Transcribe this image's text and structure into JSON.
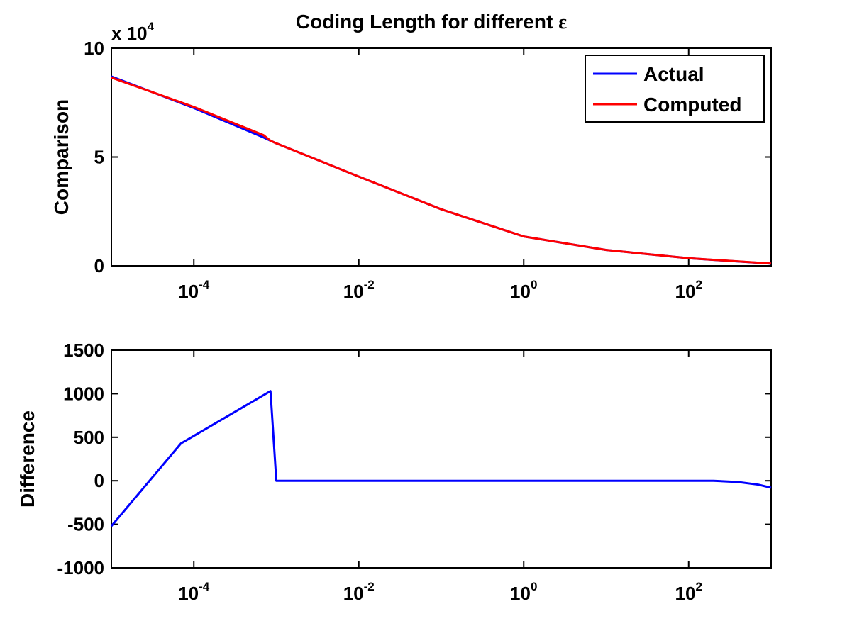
{
  "chart_data": [
    {
      "type": "line",
      "title": "Coding Length for different ",
      "title_symbol": "ε",
      "xscale": "log",
      "xlim": [
        1e-05,
        1000
      ],
      "ylim": [
        0,
        100000
      ],
      "y_multiplier_label": "x 10",
      "y_multiplier_exp": "4",
      "xlabel": "",
      "ylabel": "Comparison",
      "x_tick_values": [
        0.0001,
        0.01,
        1,
        100
      ],
      "x_tick_base": "10",
      "x_tick_exponents": [
        "-4",
        "-2",
        "0",
        "2"
      ],
      "y_tick_values": [
        0,
        50000,
        100000
      ],
      "y_tick_labels": [
        "0",
        "5",
        "10"
      ],
      "legend": "top-right",
      "grid": false,
      "series": [
        {
          "name": "Actual",
          "color": "#0000ff",
          "x": [
            1e-05,
            0.0001,
            0.0007,
            0.00085,
            0.001,
            0.01,
            0.1,
            1,
            10,
            100,
            1000
          ],
          "y": [
            87000,
            72500,
            59000,
            57500,
            56300,
            41000,
            26000,
            13500,
            7300,
            3500,
            1000
          ]
        },
        {
          "name": "Computed",
          "color": "#ff0000",
          "x": [
            1e-05,
            0.0001,
            0.0007,
            0.00085,
            0.001,
            0.01,
            0.1,
            1,
            10,
            100,
            1000
          ],
          "y": [
            86500,
            73000,
            60030,
            57500,
            56300,
            41000,
            26000,
            13500,
            7300,
            3500,
            1070
          ]
        }
      ]
    },
    {
      "type": "line",
      "xscale": "log",
      "xlim": [
        1e-05,
        1000
      ],
      "ylim": [
        -1000,
        1500
      ],
      "xlabel": "",
      "ylabel": "Difference",
      "x_tick_values": [
        0.0001,
        0.01,
        1,
        100
      ],
      "x_tick_base": "10",
      "x_tick_exponents": [
        "-4",
        "-2",
        "0",
        "2"
      ],
      "y_tick_values": [
        -1000,
        -500,
        0,
        500,
        1000,
        1500
      ],
      "y_tick_labels": [
        "-1000",
        "-500",
        "0",
        "500",
        "1000",
        "1500"
      ],
      "grid": false,
      "series": [
        {
          "color": "#0000ff",
          "x": [
            1e-05,
            7e-05,
            0.00085,
            0.001,
            0.1,
            10,
            200,
            400,
            700,
            1000
          ],
          "y": [
            -520,
            430,
            1030,
            0,
            0,
            0,
            0,
            -15,
            -45,
            -80
          ]
        }
      ]
    }
  ]
}
